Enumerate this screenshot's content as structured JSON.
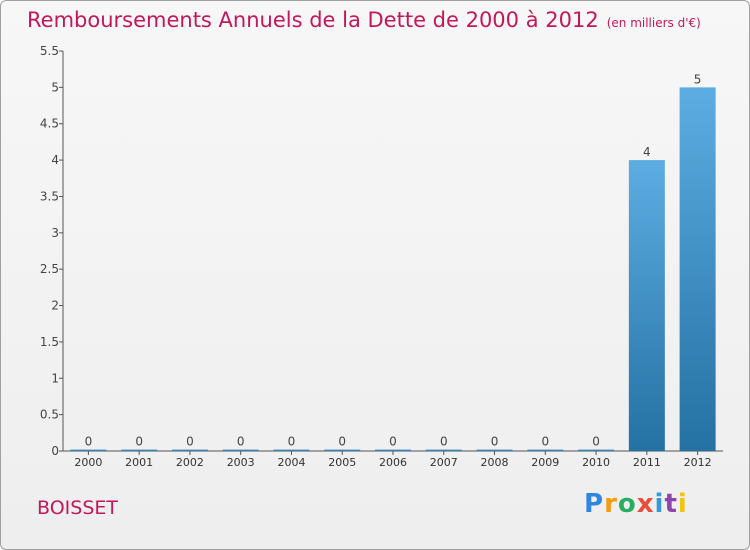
{
  "header": {
    "title": "Remboursements Annuels de la Dette de 2000 à 2012",
    "unit": "(en milliers d'€)"
  },
  "footer": {
    "place": "BOISSET",
    "logo_text": "Proxiti"
  },
  "colors": {
    "title": "#c2185b",
    "bar_light": "#5dade2",
    "bar_dark": "#2471a3",
    "axis": "#555555"
  },
  "chart_data": {
    "type": "bar",
    "title": "Remboursements Annuels de la Dette de 2000 à 2012",
    "subtitle": "(en milliers d'€)",
    "categories": [
      "2000",
      "2001",
      "2002",
      "2003",
      "2004",
      "2005",
      "2006",
      "2007",
      "2008",
      "2009",
      "2010",
      "2011",
      "2012"
    ],
    "values": [
      0,
      0,
      0,
      0,
      0,
      0,
      0,
      0,
      0,
      0,
      0,
      4,
      5
    ],
    "data_labels": [
      "0",
      "0",
      "0",
      "0",
      "0",
      "0",
      "0",
      "0",
      "0",
      "0",
      "0",
      "4",
      "5"
    ],
    "y_ticks": [
      "0",
      "0.5",
      "1",
      "1.5",
      "2",
      "2.5",
      "3",
      "3.5",
      "4",
      "4.5",
      "5",
      "5.5"
    ],
    "ylim": [
      0,
      5.5
    ],
    "grid": false
  }
}
